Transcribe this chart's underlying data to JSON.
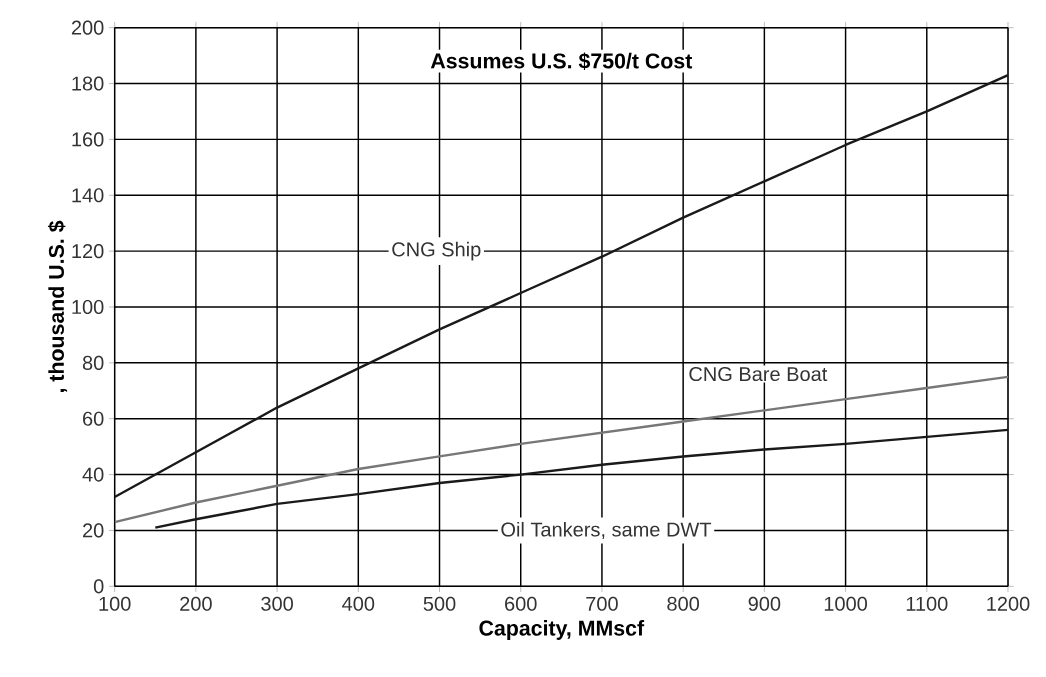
{
  "chart_data": {
    "type": "line",
    "title": "Assumes U.S. $750/t Cost",
    "xlabel": "Capacity, MMscf",
    "ylabel": ", thousand U.S. $",
    "xlim": [
      100,
      1200
    ],
    "xticks": [
      100,
      200,
      300,
      400,
      500,
      600,
      700,
      800,
      900,
      1000,
      1100,
      1200
    ],
    "ylim": [
      0,
      200
    ],
    "yticks": [
      0,
      20,
      40,
      60,
      80,
      100,
      120,
      140,
      160,
      180,
      200
    ],
    "grid": true,
    "legend": false,
    "marker": "none",
    "line_style": "solid",
    "series": [
      {
        "name": "CNG Ship",
        "color": "#1a1a1a",
        "x": [
          100,
          200,
          300,
          400,
          500,
          600,
          700,
          800,
          900,
          1000,
          1100,
          1200
        ],
        "values": [
          32,
          48,
          64,
          78,
          92,
          105,
          118,
          132,
          145,
          158,
          170,
          183
        ]
      },
      {
        "name": "CNG Bare Boat",
        "color": "#777777",
        "x": [
          100,
          200,
          300,
          400,
          500,
          600,
          700,
          800,
          900,
          1000,
          1100,
          1200
        ],
        "values": [
          23,
          30,
          36,
          42,
          46.5,
          51,
          55,
          59,
          63,
          67,
          71,
          75
        ]
      },
      {
        "name": "Oil Tankers, same DWT",
        "color": "#1a1a1a",
        "x": [
          150,
          200,
          300,
          400,
          500,
          600,
          700,
          800,
          900,
          1000,
          1100,
          1200
        ],
        "values": [
          21,
          24,
          29.5,
          33,
          37,
          40,
          43.5,
          46.5,
          49,
          51,
          53.5,
          56
        ]
      }
    ]
  }
}
